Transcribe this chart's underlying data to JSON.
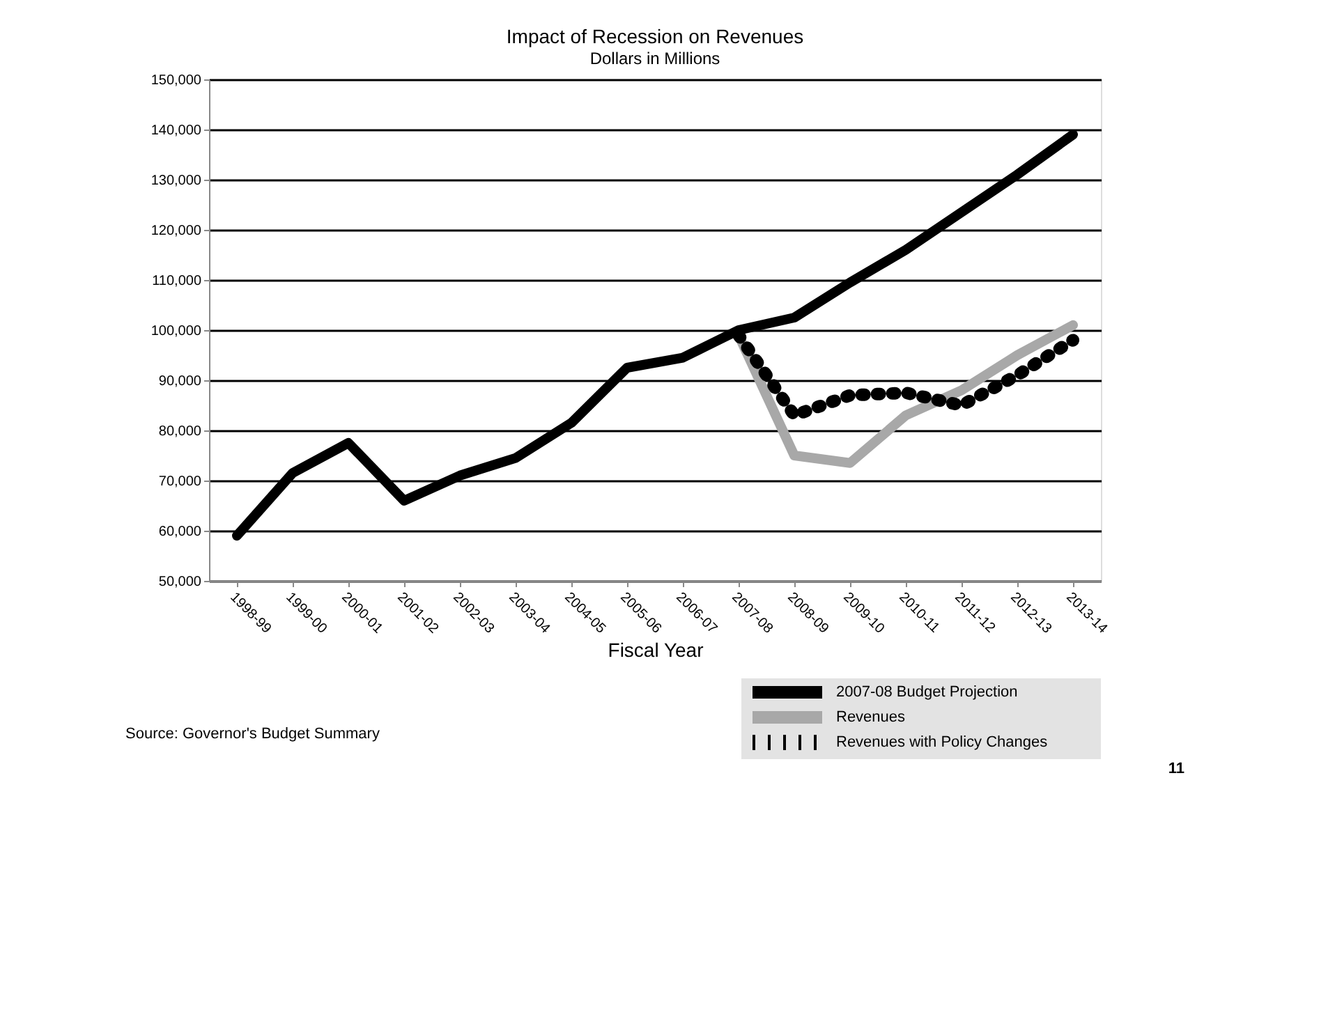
{
  "chart_data": {
    "type": "line",
    "title": "Impact of Recession on Revenues",
    "subtitle": "Dollars in Millions",
    "xlabel": "Fiscal Year",
    "categories": [
      "1998-99",
      "1999-00",
      "2000-01",
      "2001-02",
      "2002-03",
      "2003-04",
      "2004-05",
      "2005-06",
      "2006-07",
      "2007-08",
      "2008-09",
      "2009-10",
      "2010-11",
      "2011-12",
      "2012-13",
      "2013-14"
    ],
    "series": [
      {
        "name": "2007-08 Budget Projection",
        "color": "#000000",
        "line_style": "solid",
        "values": [
          59000,
          71500,
          77500,
          66000,
          71000,
          74500,
          81500,
          92500,
          94500,
          100000,
          102500,
          109500,
          116000,
          123500,
          131000,
          139000
        ]
      },
      {
        "name": "Revenues",
        "color": "#a8a8a8",
        "line_style": "solid",
        "values": [
          null,
          null,
          null,
          null,
          null,
          null,
          null,
          null,
          null,
          99000,
          75000,
          73500,
          83000,
          88000,
          95000,
          101000
        ]
      },
      {
        "name": "Revenues with Policy Changes",
        "color": "#000000",
        "line_style": "dotted",
        "values": [
          null,
          null,
          null,
          null,
          null,
          null,
          null,
          null,
          null,
          99000,
          83000,
          87000,
          87500,
          85000,
          91000,
          98000
        ]
      }
    ],
    "ylim": [
      50000,
      150000
    ],
    "yticks": [
      {
        "value": 50000,
        "label": "50,000"
      },
      {
        "value": 60000,
        "label": "60,000"
      },
      {
        "value": 70000,
        "label": "70,000"
      },
      {
        "value": 80000,
        "label": "80,000"
      },
      {
        "value": 90000,
        "label": "90,000"
      },
      {
        "value": 100000,
        "label": "100,000"
      },
      {
        "value": 110000,
        "label": "110,000"
      },
      {
        "value": 120000,
        "label": "120,000"
      },
      {
        "value": 130000,
        "label": "130,000"
      },
      {
        "value": 140000,
        "label": "140,000"
      },
      {
        "value": 150000,
        "label": "150,000"
      }
    ],
    "grid": "y",
    "legend": "bottom right",
    "marker": "none",
    "annotations": [
      "Source: Governor's Budget Summary",
      "11"
    ]
  }
}
